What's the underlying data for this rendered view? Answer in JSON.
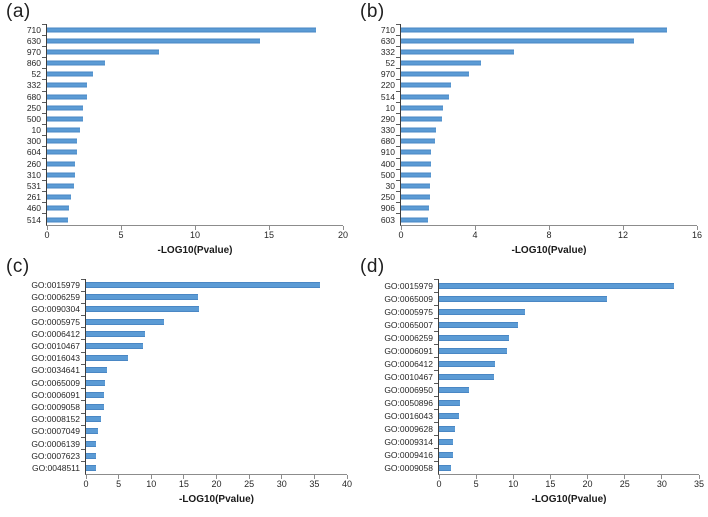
{
  "style": {
    "bar_color": "#5B9BD5",
    "bar_edge_color": "#4A87C4",
    "y_axis_color": "#3F3F3F",
    "x_axis_color": "#8C8C8C",
    "text_color": "#262626",
    "background": "#FFFFFF"
  },
  "chart_data": [
    {
      "type": "bar",
      "orientation": "horizontal",
      "panel_label": "(a)",
      "xlabel": "-LOG10(Pvalue)",
      "xlim": [
        0,
        20
      ],
      "xticks": [
        0,
        5,
        10,
        15,
        20
      ],
      "grid": false,
      "legend": false,
      "categories": [
        "710",
        "630",
        "970",
        "860",
        "52",
        "332",
        "680",
        "250",
        "500",
        "10",
        "300",
        "604",
        "260",
        "310",
        "531",
        "261",
        "460",
        "514"
      ],
      "values": [
        18.2,
        14.4,
        7.6,
        3.9,
        3.1,
        2.7,
        2.7,
        2.45,
        2.4,
        2.25,
        2.0,
        2.0,
        1.9,
        1.9,
        1.8,
        1.6,
        1.5,
        1.4
      ]
    },
    {
      "type": "bar",
      "orientation": "horizontal",
      "panel_label": "(b)",
      "xlabel": "-LOG10(Pvalue)",
      "xlim": [
        0,
        16
      ],
      "xticks": [
        0,
        4,
        8,
        12,
        16
      ],
      "grid": false,
      "legend": false,
      "categories": [
        "710",
        "630",
        "332",
        "52",
        "970",
        "220",
        "514",
        "10",
        "290",
        "330",
        "680",
        "910",
        "400",
        "500",
        "30",
        "250",
        "906",
        "603"
      ],
      "values": [
        14.4,
        12.6,
        6.1,
        4.3,
        3.7,
        2.7,
        2.6,
        2.25,
        2.2,
        1.9,
        1.85,
        1.6,
        1.6,
        1.6,
        1.55,
        1.55,
        1.5,
        1.45
      ]
    },
    {
      "type": "bar",
      "orientation": "horizontal",
      "panel_label": "(c)",
      "xlabel": "-LOG10(Pvalue)",
      "xlim": [
        0,
        40
      ],
      "xticks": [
        0,
        5,
        10,
        15,
        20,
        25,
        30,
        35,
        40
      ],
      "grid": false,
      "legend": false,
      "categories": [
        "GO:0015979",
        "GO:0006259",
        "GO:0090304",
        "GO:0005975",
        "GO:0006412",
        "GO:0010467",
        "GO:0016043",
        "GO:0034641",
        "GO:0065009",
        "GO:0006091",
        "GO:0009058",
        "GO:0008152",
        "GO:0007049",
        "GO:0006139",
        "GO:0007623",
        "GO:0048511"
      ],
      "values": [
        35.8,
        17.2,
        17.3,
        12.0,
        9.1,
        8.7,
        6.4,
        3.2,
        2.9,
        2.8,
        2.7,
        2.3,
        1.9,
        1.5,
        1.5,
        1.5
      ]
    },
    {
      "type": "bar",
      "orientation": "horizontal",
      "panel_label": "(d)",
      "xlabel": "-LOG10(Pvalue)",
      "xlim": [
        0,
        35
      ],
      "xticks": [
        0,
        5,
        10,
        15,
        20,
        25,
        30,
        35
      ],
      "grid": false,
      "legend": false,
      "categories": [
        "GO:0015979",
        "GO:0065009",
        "GO:0005975",
        "GO:0065007",
        "GO:0006259",
        "GO:0006091",
        "GO:0006412",
        "GO:0010467",
        "GO:0006950",
        "GO:0050896",
        "GO:0016043",
        "GO:0009628",
        "GO:0009314",
        "GO:0009416",
        "GO:0009058"
      ],
      "values": [
        31.7,
        22.6,
        11.6,
        10.6,
        9.4,
        9.2,
        7.6,
        7.4,
        4.0,
        2.8,
        2.7,
        2.1,
        1.9,
        1.9,
        1.6
      ]
    }
  ]
}
